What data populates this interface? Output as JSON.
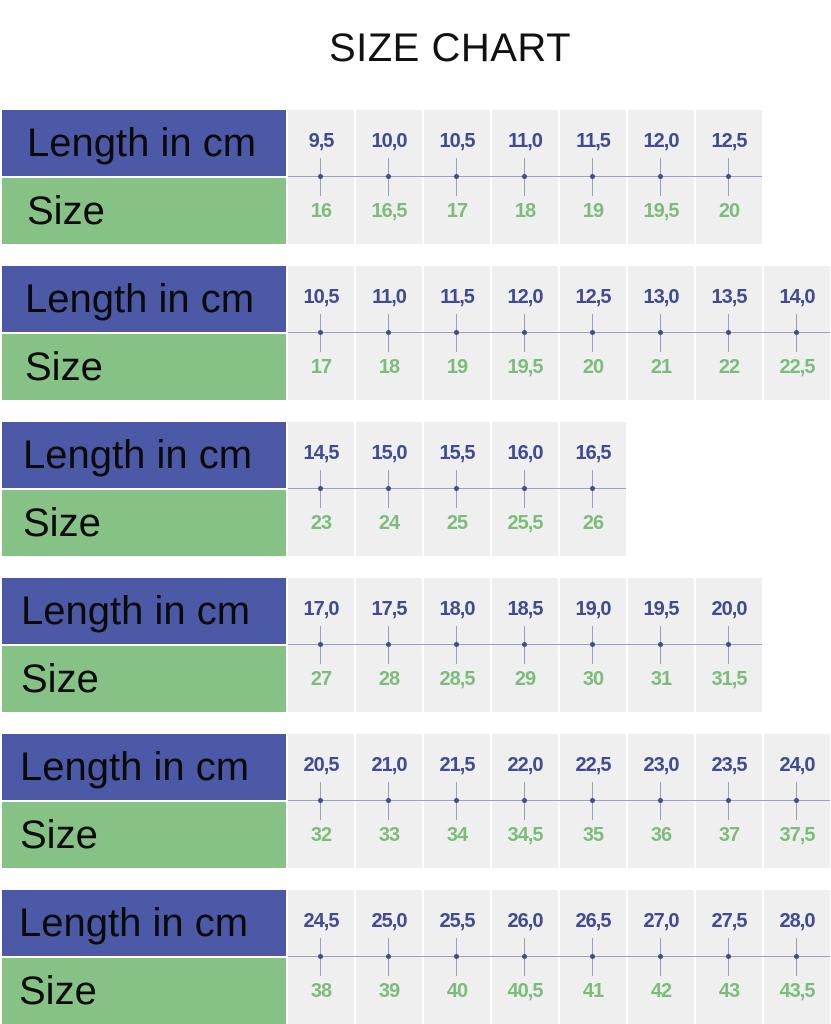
{
  "title": "SIZE CHART",
  "row_labels": {
    "length": "Length in cm",
    "size": "Size"
  },
  "colors": {
    "length_header": "#4b59a7",
    "size_header": "#86c185",
    "length_text": "#3f4b92",
    "size_text": "#7dbd7c",
    "cell_bg": "#efefef"
  },
  "tables": [
    {
      "length_cm": [
        "9,5",
        "10,0",
        "10,5",
        "11,0",
        "11,5",
        "12,0",
        "12,5"
      ],
      "size": [
        "16",
        "16,5",
        "17",
        "18",
        "19",
        "19,5",
        "20"
      ]
    },
    {
      "length_cm": [
        "10,5",
        "11,0",
        "11,5",
        "12,0",
        "12,5",
        "13,0",
        "13,5",
        "14,0"
      ],
      "size": [
        "17",
        "18",
        "19",
        "19,5",
        "20",
        "21",
        "22",
        "22,5"
      ]
    },
    {
      "length_cm": [
        "14,5",
        "15,0",
        "15,5",
        "16,0",
        "16,5"
      ],
      "size": [
        "23",
        "24",
        "25",
        "25,5",
        "26"
      ]
    },
    {
      "length_cm": [
        "17,0",
        "17,5",
        "18,0",
        "18,5",
        "19,0",
        "19,5",
        "20,0"
      ],
      "size": [
        "27",
        "28",
        "28,5",
        "29",
        "30",
        "31",
        "31,5"
      ]
    },
    {
      "length_cm": [
        "20,5",
        "21,0",
        "21,5",
        "22,0",
        "22,5",
        "23,0",
        "23,5",
        "24,0"
      ],
      "size": [
        "32",
        "33",
        "34",
        "34,5",
        "35",
        "36",
        "37",
        "37,5"
      ]
    },
    {
      "length_cm": [
        "24,5",
        "25,0",
        "25,5",
        "26,0",
        "26,5",
        "27,0",
        "27,5",
        "28,0"
      ],
      "size": [
        "38",
        "39",
        "40",
        "40,5",
        "41",
        "42",
        "43",
        "43,5"
      ]
    }
  ]
}
